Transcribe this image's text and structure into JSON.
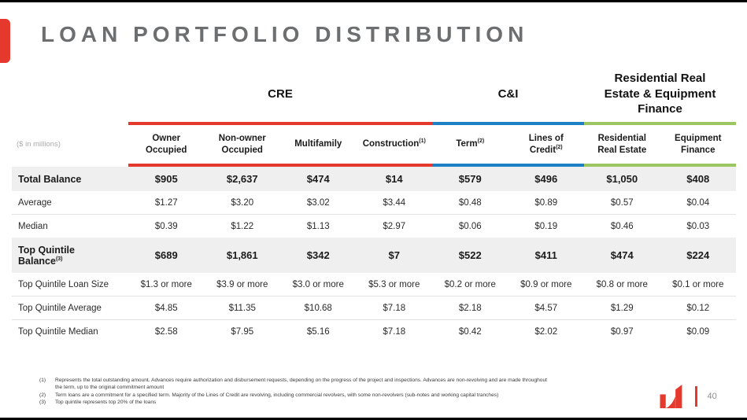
{
  "slide": {
    "title": "LOAN PORTFOLIO DISTRIBUTION",
    "units_note": "($ in millions)"
  },
  "colors": {
    "accent_red": "#E6392D",
    "cre_red": "#E6392D",
    "ci_blue": "#1E80C4",
    "rre_green": "#9CC662",
    "title_gray": "#6C6E70",
    "row_stripe": "#EFEFEF"
  },
  "table": {
    "groups": [
      {
        "label": "CRE",
        "span": 4,
        "color": "#E6392D"
      },
      {
        "label": "C&I",
        "span": 2,
        "color": "#1E80C4"
      },
      {
        "label": "Residential Real Estate & Equipment Finance",
        "span": 2,
        "color": "#9CC662"
      }
    ],
    "columns": [
      {
        "label": "Owner Occupied",
        "sup": ""
      },
      {
        "label": "Non-owner Occupied",
        "sup": ""
      },
      {
        "label": "Multifamily",
        "sup": ""
      },
      {
        "label": "Construction",
        "sup": "(1)"
      },
      {
        "label": "Term",
        "sup": "(2)"
      },
      {
        "label": "Lines of Credit",
        "sup": "(2)"
      },
      {
        "label": "Residential Real Estate",
        "sup": ""
      },
      {
        "label": "Equipment Finance",
        "sup": ""
      }
    ],
    "rows": [
      {
        "label": "Total Balance",
        "sup": "",
        "bold": true,
        "shaded": true,
        "values": [
          "$905",
          "$2,637",
          "$474",
          "$14",
          "$579",
          "$496",
          "$1,050",
          "$408"
        ]
      },
      {
        "label": "Average",
        "sup": "",
        "bold": false,
        "shaded": false,
        "values": [
          "$1.27",
          "$3.20",
          "$3.02",
          "$3.44",
          "$0.48",
          "$0.89",
          "$0.57",
          "$0.04"
        ]
      },
      {
        "label": "Median",
        "sup": "",
        "bold": false,
        "shaded": false,
        "values": [
          "$0.39",
          "$1.22",
          "$1.13",
          "$2.97",
          "$0.06",
          "$0.19",
          "$0.46",
          "$0.03"
        ]
      },
      {
        "label": "Top Quintile",
        "label2": "Balance",
        "sup": "(3)",
        "bold": true,
        "shaded": true,
        "tall": true,
        "values": [
          "$689",
          "$1,861",
          "$342",
          "$7",
          "$522",
          "$411",
          "$474",
          "$224"
        ]
      },
      {
        "label": "Top Quintile Loan Size",
        "sup": "",
        "bold": false,
        "shaded": false,
        "values": [
          "$1.3 or more",
          "$3.9 or more",
          "$3.0 or more",
          "$5.3 or more",
          "$0.2 or more",
          "$0.9 or more",
          "$0.8 or more",
          "$0.1 or more"
        ]
      },
      {
        "label": "Top Quintile Average",
        "sup": "",
        "bold": false,
        "shaded": false,
        "values": [
          "$4.85",
          "$11.35",
          "$10.68",
          "$7.18",
          "$2.18",
          "$4.57",
          "$1.29",
          "$0.12"
        ]
      },
      {
        "label": "Top Quintile Median",
        "sup": "",
        "bold": false,
        "shaded": false,
        "values": [
          "$2.58",
          "$7.95",
          "$5.16",
          "$7.18",
          "$0.42",
          "$2.02",
          "$0.97",
          "$0.09"
        ]
      }
    ]
  },
  "footnotes": [
    {
      "num": "(1)",
      "text": "Represents the total outstanding amount. Advances require authorization and disbursement requests, depending on the progress of the project and inspections. Advances are non-revolving and are made throughout the term, up to the original commitment amount"
    },
    {
      "num": "(2)",
      "text": "Term loans are a commitment for a specified term. Majority of the Lines of Credit are revolving, including commercial revolvers, with some non-revolvers (sub-notes and working capital tranches)"
    },
    {
      "num": "(3)",
      "text": "Top quintile represents top 20% of the loans"
    }
  ],
  "footer": {
    "page_number": "40"
  }
}
